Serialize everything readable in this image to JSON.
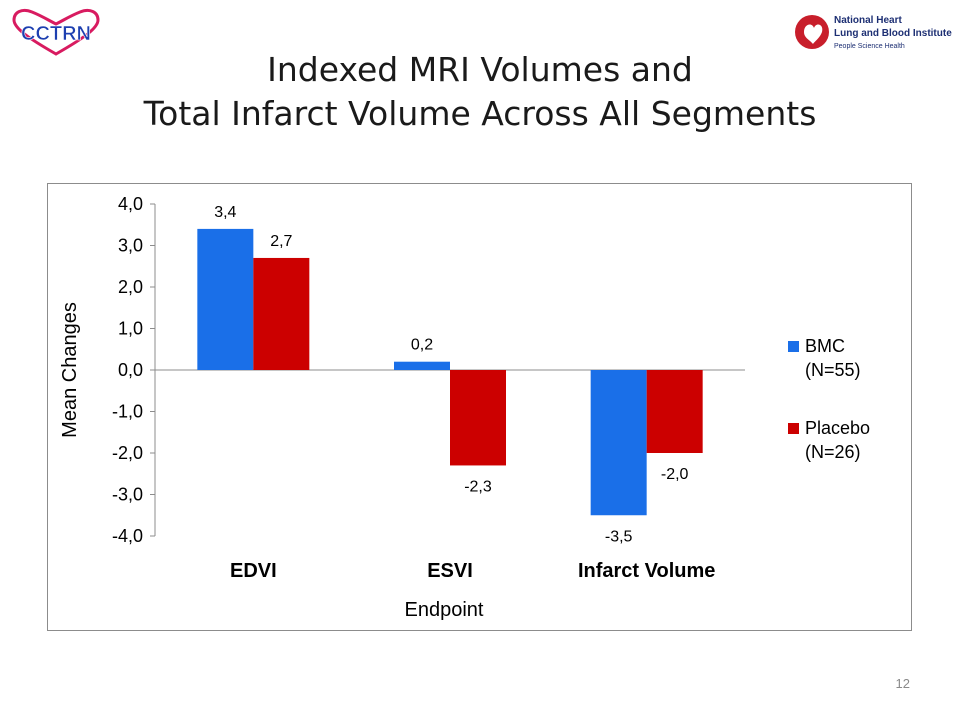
{
  "header": {
    "logo_left_text": "CCTRN",
    "logo_right_text": [
      "National Heart",
      "Lung and Blood Institute",
      "People Science Health"
    ]
  },
  "title": {
    "line1": "Indexed MRI Volumes and",
    "line2": "Total Infarct Volume Across All Segments"
  },
  "page_number": "12",
  "chart_data": {
    "type": "bar",
    "categories": [
      "EDVI",
      "ESVI",
      "Infarct Volume"
    ],
    "series": [
      {
        "name": "BMC (N=55)",
        "legend_lines": [
          "BMC",
          "(N=55)"
        ],
        "color": "#1a6fe8",
        "values": [
          3.4,
          0.2,
          -3.5
        ],
        "labels": [
          "3,4",
          "0,2",
          "-3,5"
        ]
      },
      {
        "name": "Placebo (N=26)",
        "legend_lines": [
          "Placebo",
          "(N=26)"
        ],
        "color": "#cc0000",
        "values": [
          2.7,
          -2.3,
          -2.0
        ],
        "labels": [
          "2,7",
          "-2,3",
          "-2,0"
        ]
      }
    ],
    "xlabel": "Endpoint",
    "ylabel": "Mean Changes",
    "ylim": [
      -4.0,
      4.0
    ],
    "yticks": [
      4,
      3,
      2,
      1,
      0,
      -1,
      -2,
      -3,
      -4
    ],
    "ytick_labels": [
      "4,0",
      "3,0",
      "2,0",
      "1,0",
      "0,0",
      "-1,0",
      "-2,0",
      "-3,0",
      "-4,0"
    ],
    "legend_position": "right",
    "grid": false
  }
}
